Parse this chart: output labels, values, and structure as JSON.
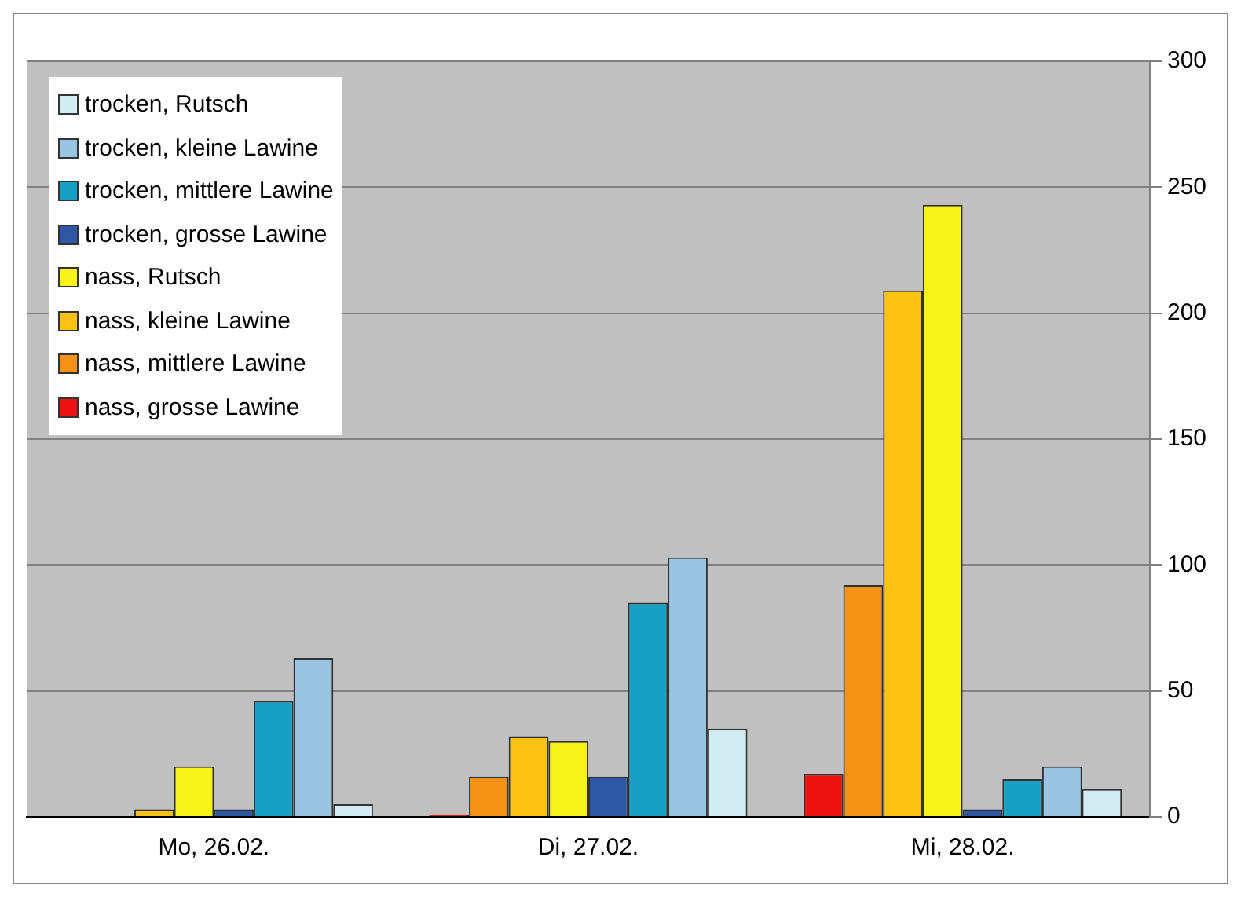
{
  "chart_data": {
    "type": "bar",
    "categories": [
      "Mo, 26.02.",
      "Di, 27.02.",
      "Mi, 28.02."
    ],
    "series": [
      {
        "name": "nass, grosse Lawine",
        "color": "#ee1111",
        "values": [
          0,
          1,
          17
        ]
      },
      {
        "name": "nass, mittlere Lawine",
        "color": "#f39214",
        "values": [
          0,
          16,
          92
        ]
      },
      {
        "name": "nass, kleine Lawine",
        "color": "#fbc214",
        "values": [
          3,
          32,
          209
        ]
      },
      {
        "name": "nass, Rutsch",
        "color": "#f7f217",
        "values": [
          20,
          30,
          243
        ]
      },
      {
        "name": "trocken, grosse Lawine",
        "color": "#2e58a6",
        "values": [
          3,
          16,
          3
        ]
      },
      {
        "name": "trocken, mittlere Lawine",
        "color": "#16a0c6",
        "values": [
          46,
          85,
          15
        ]
      },
      {
        "name": "trocken, kleine Lawine",
        "color": "#99c5e2",
        "values": [
          63,
          103,
          20
        ]
      },
      {
        "name": "trocken, Rutsch",
        "color": "#d2ecf1",
        "values": [
          5,
          35,
          11
        ]
      }
    ],
    "ylim": [
      0,
      300
    ],
    "yticks": [
      0,
      50,
      100,
      150,
      200,
      250,
      300
    ],
    "grid": "y",
    "legend": "top left"
  }
}
